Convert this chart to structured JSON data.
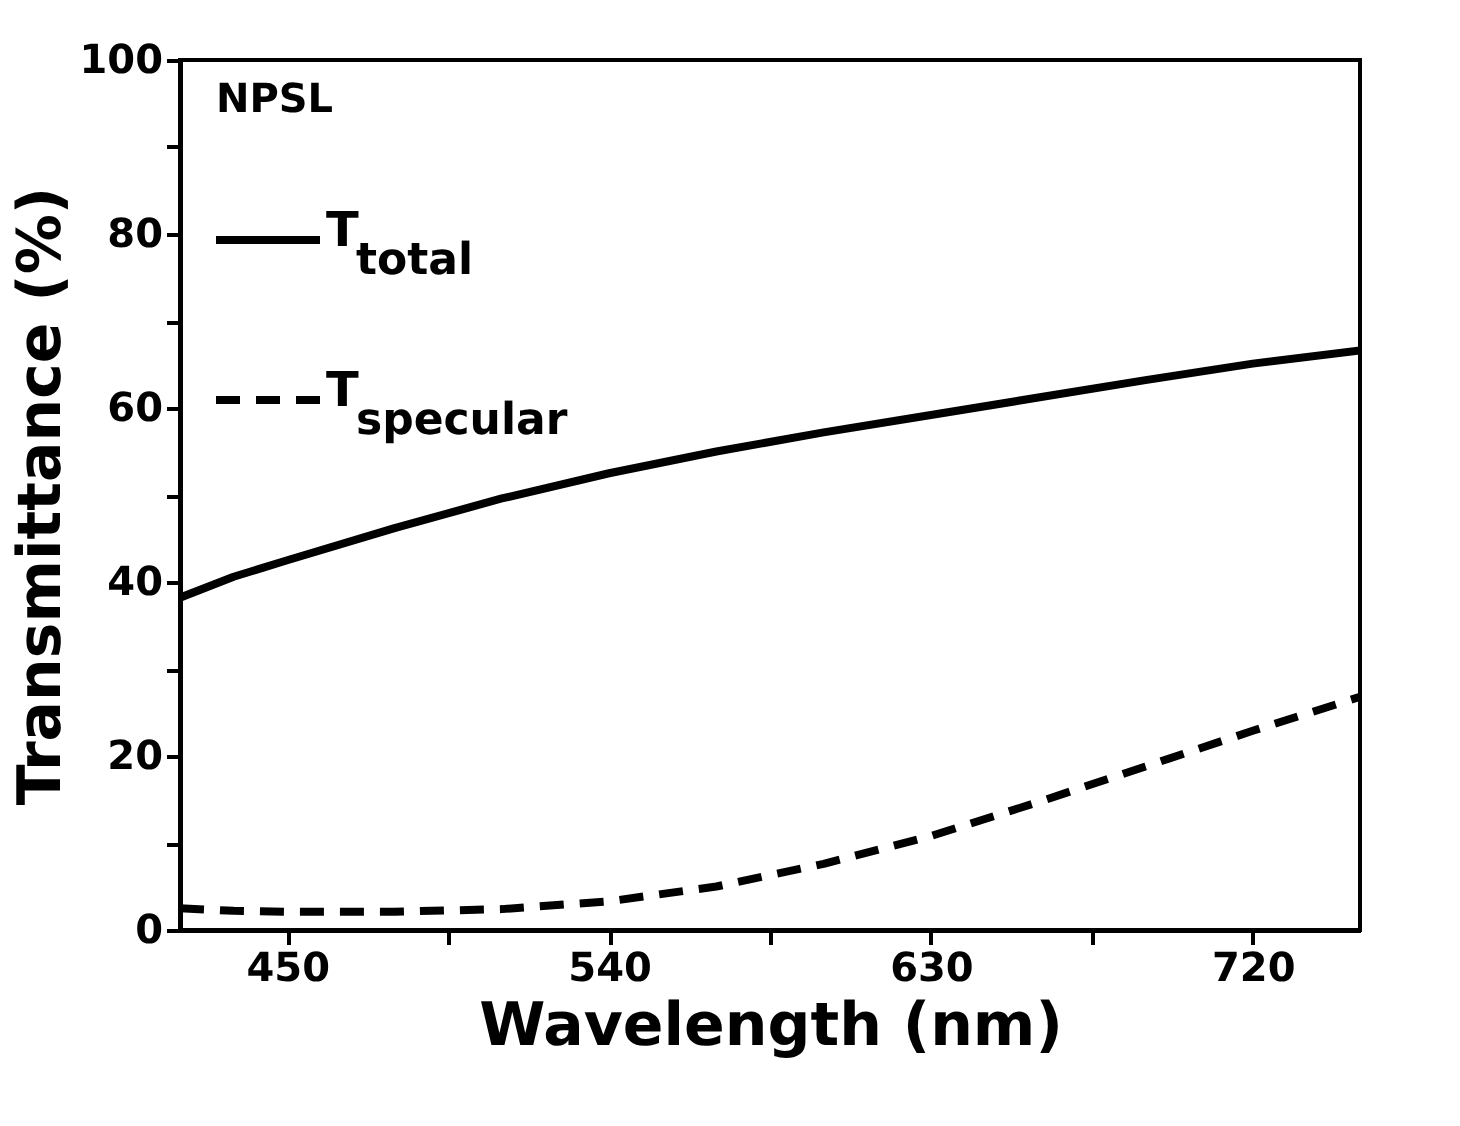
{
  "chart_data": {
    "type": "line",
    "xlabel": "Wavelength (nm)",
    "ylabel": "Transmittance (%)",
    "annotations": [
      "NPSL"
    ],
    "x": [
      420,
      435,
      450,
      480,
      510,
      540,
      570,
      600,
      630,
      660,
      690,
      720,
      750
    ],
    "series": [
      {
        "name": "T$_{total}$",
        "color": "#000000",
        "line_style": "solid",
        "values": [
          38.2,
          40.6,
          42.5,
          46.2,
          49.6,
          52.5,
          55.0,
          57.2,
          59.2,
          61.2,
          63.2,
          65.1,
          66.6
        ]
      },
      {
        "name": "T$_{specular}$",
        "color": "#000000",
        "line_style": "dashed",
        "values": [
          2.5,
          2.2,
          2.1,
          2.1,
          2.4,
          3.3,
          5.0,
          7.6,
          10.8,
          14.7,
          18.8,
          22.9,
          26.8
        ]
      }
    ],
    "xlim": [
      420,
      750
    ],
    "ylim": [
      0,
      100
    ],
    "xticks": [
      450,
      {
        "value": 495,
        "label": null
      },
      540,
      {
        "value": 585,
        "label": null
      },
      630,
      {
        "value": 675,
        "label": null
      },
      720
    ],
    "yticks": [
      0,
      {
        "value": 10,
        "label": null
      },
      20,
      {
        "value": 30,
        "label": null
      },
      40,
      {
        "value": 50,
        "label": null
      },
      60,
      {
        "value": 70,
        "label": null
      },
      80,
      {
        "value": 90,
        "label": null
      },
      100
    ],
    "legend": "top left",
    "grid": false
  }
}
